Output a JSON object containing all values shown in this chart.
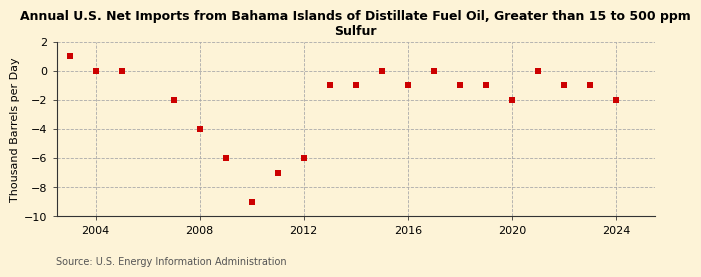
{
  "title_line1": "Annual U.S. Net Imports from Bahama Islands of Distillate Fuel Oil, Greater than 15 to 500 ppm",
  "title_line2": "Sulfur",
  "ylabel": "Thousand Barrels per Day",
  "source": "Source: U.S. Energy Information Administration",
  "background_color": "#fdf3d7",
  "plot_bg_color": "#fdf3d7",
  "years": [
    2003,
    2004,
    2005,
    2007,
    2008,
    2009,
    2010,
    2011,
    2012,
    2013,
    2014,
    2015,
    2016,
    2017,
    2018,
    2019,
    2020,
    2021,
    2022,
    2023,
    2024
  ],
  "values": [
    1.0,
    0.0,
    0.0,
    -2.0,
    -4.0,
    -6.0,
    -9.0,
    -7.0,
    -6.0,
    -1.0,
    -1.0,
    0.0,
    -1.0,
    0.0,
    -1.0,
    -1.0,
    -2.0,
    0.0,
    -1.0,
    -1.0,
    -2.0
  ],
  "marker_color": "#cc0000",
  "ylim": [
    -10,
    2
  ],
  "yticks": [
    -10,
    -8,
    -6,
    -4,
    -2,
    0,
    2
  ],
  "xlim": [
    2002.5,
    2025.5
  ],
  "xticks": [
    2004,
    2008,
    2012,
    2016,
    2020,
    2024
  ],
  "grid_color": "#aaaaaa",
  "spine_color": "#333333",
  "tick_label_size": 8,
  "title_fontsize": 9,
  "ylabel_fontsize": 8,
  "source_fontsize": 7
}
